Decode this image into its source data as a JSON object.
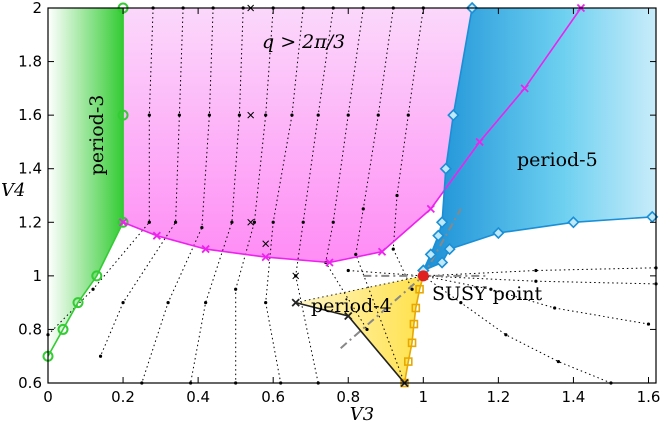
{
  "chart_data": {
    "type": "scatter",
    "title": "",
    "xlabel": "V3",
    "ylabel": "V4",
    "xlim": [
      0,
      1.62
    ],
    "ylim": [
      0.6,
      2.0
    ],
    "grid": false,
    "x_ticks": [
      "0",
      "0.2",
      "0.4",
      "0.6",
      "0.8",
      "1",
      "1.2",
      "1.4",
      "1.6"
    ],
    "y_ticks": [
      "0.6",
      "0.8",
      "1",
      "1.2",
      "1.4",
      "1.6",
      "1.8",
      "2"
    ],
    "colors": {
      "period3": "#33cc33",
      "incommensurate": "#ee22ee",
      "period5": "#1a8fd6",
      "period4": "#f0b000",
      "susy": "#e02020",
      "flow": "#000000",
      "dashdot": "#888888"
    },
    "annotations": {
      "period3": "period-3",
      "period4": "period-4",
      "period5": "period-5",
      "incommensurate": "q > 2π/3",
      "susy": "SUSY point"
    },
    "boundaries": {
      "period3": [
        [
          0,
          0.7
        ],
        [
          0.04,
          0.8
        ],
        [
          0.08,
          0.9
        ],
        [
          0.13,
          1.0
        ],
        [
          0.2,
          1.2
        ],
        [
          0.2,
          1.6
        ],
        [
          0.2,
          2.0
        ]
      ],
      "incommensurate": [
        [
          0.2,
          1.2
        ],
        [
          0.29,
          1.15
        ],
        [
          0.42,
          1.1
        ],
        [
          0.58,
          1.07
        ],
        [
          0.75,
          1.05
        ],
        [
          0.89,
          1.09
        ],
        [
          1.02,
          1.25
        ],
        [
          1.15,
          1.5
        ],
        [
          1.27,
          1.7
        ],
        [
          1.42,
          2.0
        ]
      ],
      "period5": [
        [
          1.0,
          1.02
        ],
        [
          1.02,
          1.08
        ],
        [
          1.04,
          1.15
        ],
        [
          1.05,
          1.2
        ],
        [
          1.06,
          1.4
        ],
        [
          1.08,
          1.6
        ],
        [
          1.13,
          2.0
        ]
      ],
      "period5_lower": [
        [
          1.0,
          1.02
        ],
        [
          1.05,
          1.05
        ],
        [
          1.07,
          1.1
        ],
        [
          1.2,
          1.16
        ],
        [
          1.4,
          1.2
        ],
        [
          1.61,
          1.22
        ]
      ],
      "period4_left": [
        [
          0.66,
          0.9
        ],
        [
          0.8,
          0.85
        ],
        [
          0.95,
          0.6
        ]
      ],
      "period4_right": [
        [
          1.0,
          1.0
        ],
        [
          0.99,
          0.95
        ],
        [
          0.98,
          0.88
        ],
        [
          0.975,
          0.82
        ],
        [
          0.97,
          0.75
        ],
        [
          0.96,
          0.68
        ],
        [
          0.95,
          0.6
        ]
      ]
    },
    "susy_point": [
      1.0,
      1.0
    ]
  }
}
